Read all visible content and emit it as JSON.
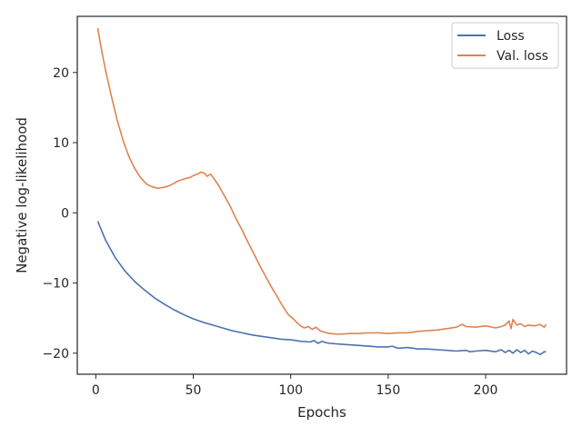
{
  "chart_data": {
    "type": "line",
    "xlabel": "Epochs",
    "ylabel": "Negative log-likelihood",
    "xlim": [
      -9.5,
      241.5
    ],
    "ylim": [
      -23.0,
      28.0
    ],
    "xticks": [
      0,
      50,
      100,
      150,
      200
    ],
    "yticks": [
      -20,
      -10,
      0,
      10,
      20
    ],
    "tick_labels_x": [
      "0",
      "50",
      "100",
      "150",
      "200"
    ],
    "tick_labels_y": [
      "−20",
      "−10",
      "0",
      "10",
      "20"
    ],
    "legend": "top-right",
    "grid": false,
    "series": [
      {
        "name": "Loss",
        "color": "#4c72b0",
        "x": [
          1,
          5,
          10,
          15,
          20,
          25,
          30,
          35,
          40,
          45,
          50,
          55,
          60,
          65,
          70,
          75,
          80,
          85,
          90,
          95,
          100,
          105,
          110,
          112,
          114,
          116,
          118,
          120,
          125,
          130,
          135,
          140,
          145,
          150,
          152,
          155,
          160,
          163,
          165,
          170,
          175,
          180,
          185,
          190,
          192,
          195,
          200,
          205,
          208,
          210,
          212,
          214,
          216,
          218,
          220,
          222,
          224,
          226,
          228,
          230,
          231
        ],
        "y": [
          -1.2,
          -3.9,
          -6.4,
          -8.3,
          -9.8,
          -11.0,
          -12.1,
          -13.0,
          -13.8,
          -14.5,
          -15.1,
          -15.6,
          -16.0,
          -16.4,
          -16.8,
          -17.1,
          -17.4,
          -17.6,
          -17.8,
          -18.0,
          -18.1,
          -18.3,
          -18.4,
          -18.2,
          -18.6,
          -18.3,
          -18.5,
          -18.6,
          -18.7,
          -18.8,
          -18.9,
          -19.0,
          -19.1,
          -19.1,
          -19.0,
          -19.3,
          -19.2,
          -19.3,
          -19.4,
          -19.4,
          -19.5,
          -19.6,
          -19.7,
          -19.6,
          -19.8,
          -19.7,
          -19.6,
          -19.8,
          -19.5,
          -19.9,
          -19.6,
          -20.0,
          -19.5,
          -19.9,
          -19.6,
          -20.1,
          -19.7,
          -19.9,
          -20.2,
          -19.8,
          -19.8
        ]
      },
      {
        "name": "Val. loss",
        "color": "#dd8452",
        "x": [
          1,
          3,
          5,
          8,
          11,
          14,
          17,
          20,
          23,
          26,
          29,
          32,
          34,
          36,
          38,
          40,
          42,
          44,
          46,
          48,
          50,
          52,
          54,
          56,
          57,
          59,
          61,
          63,
          65,
          67,
          69,
          71,
          73,
          75,
          77,
          79,
          81,
          83,
          85,
          87,
          89,
          91,
          93,
          95,
          97,
          99,
          101,
          103,
          105,
          107,
          109,
          111,
          113,
          115,
          117,
          120,
          125,
          130,
          135,
          140,
          145,
          150,
          155,
          160,
          165,
          170,
          175,
          180,
          185,
          188,
          190,
          195,
          200,
          205,
          208,
          210,
          212,
          213,
          214,
          216,
          218,
          220,
          222,
          225,
          228,
          230,
          231
        ],
        "y": [
          26.3,
          23.1,
          20.3,
          16.6,
          13.2,
          10.3,
          8.0,
          6.3,
          5.0,
          4.1,
          3.7,
          3.5,
          3.6,
          3.7,
          3.9,
          4.2,
          4.5,
          4.7,
          4.9,
          5.0,
          5.3,
          5.5,
          5.8,
          5.6,
          5.2,
          5.5,
          4.7,
          3.9,
          2.9,
          1.9,
          0.9,
          -0.3,
          -1.4,
          -2.4,
          -3.6,
          -4.7,
          -5.8,
          -6.9,
          -8.0,
          -9.0,
          -10.0,
          -11.0,
          -11.9,
          -12.9,
          -13.8,
          -14.6,
          -15.0,
          -15.6,
          -16.1,
          -16.4,
          -16.2,
          -16.6,
          -16.3,
          -16.8,
          -17.0,
          -17.2,
          -17.3,
          -17.2,
          -17.2,
          -17.1,
          -17.1,
          -17.2,
          -17.1,
          -17.1,
          -16.9,
          -16.8,
          -16.7,
          -16.5,
          -16.3,
          -15.9,
          -16.2,
          -16.3,
          -16.1,
          -16.4,
          -16.2,
          -16.0,
          -15.4,
          -16.5,
          -15.2,
          -16.0,
          -15.8,
          -16.2,
          -16.0,
          -16.1,
          -15.9,
          -16.3,
          -15.9
        ]
      }
    ]
  }
}
